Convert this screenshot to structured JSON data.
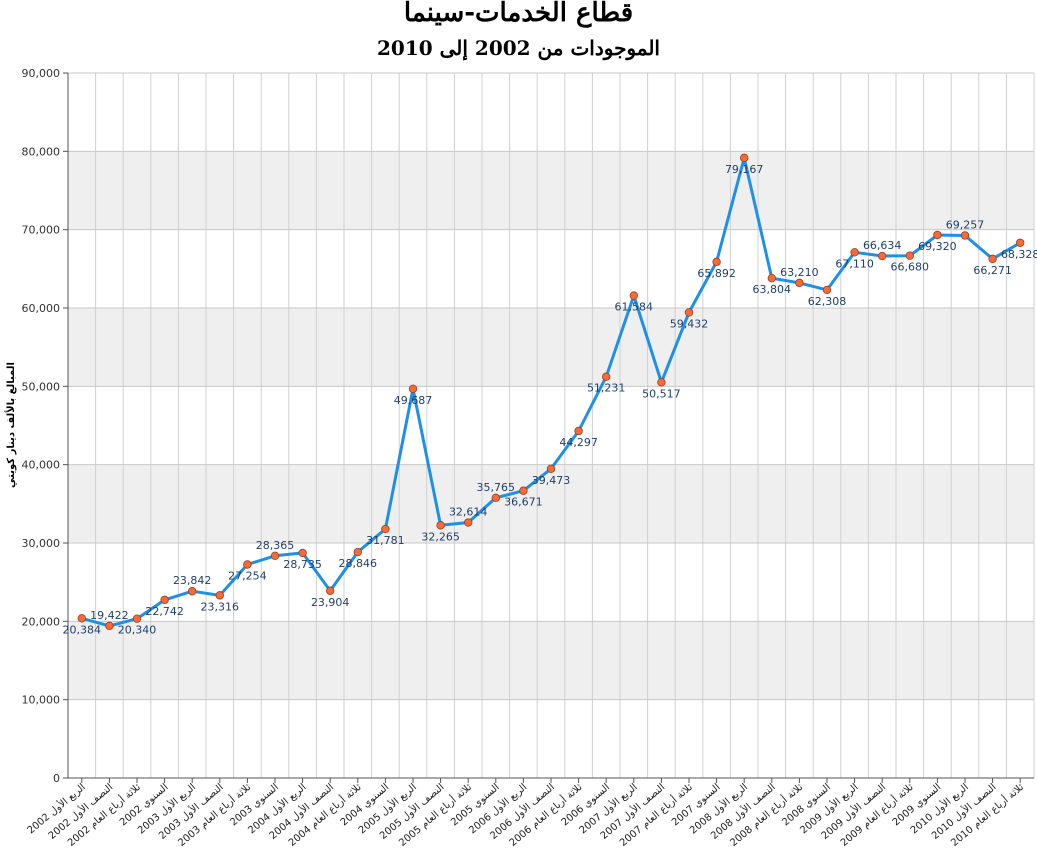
{
  "chart_data": {
    "type": "line",
    "title": "قطاع الخدمات-سينما",
    "subtitle": "الموجودات من 2002 إلى 2010",
    "ylabel": "المبالغ بالألف دينار كويتي",
    "xlabel": "",
    "ylim": [
      0,
      90000
    ],
    "yticks": [
      "0",
      "10,000",
      "20,000",
      "30,000",
      "40,000",
      "50,000",
      "60,000",
      "70,000",
      "80,000",
      "90,000"
    ],
    "grid": true,
    "line_color": "#1e90e8",
    "marker_color": "#f26b3a",
    "categories": [
      "الربع الأول 2002",
      "النصف الأول 2002",
      "ثلاثة أرباع العام 2002",
      "السنوي 2002",
      "الربع الأول 2003",
      "النصف الأول 2003",
      "ثلاثة أرباع العام 2003",
      "السنوي 2003",
      "الربع الأول 2004",
      "النصف الأول 2004",
      "ثلاثة أرباع العام 2004",
      "السنوي 2004",
      "الربع الأول 2005",
      "النصف الأول 2005",
      "ثلاثة أرباع العام 2005",
      "السنوي 2005",
      "الربع الأول 2006",
      "النصف الأول 2006",
      "ثلاثة أرباع العام 2006",
      "السنوي 2006",
      "الربع الأول 2007",
      "النصف الأول 2007",
      "ثلاثة أرباع العام 2007",
      "السنوي 2007",
      "الربع الأول 2008",
      "النصف الأول 2008",
      "ثلاثة أرباع العام 2008",
      "السنوي 2008",
      "الربع الأول 2009",
      "النصف الأول 2009",
      "ثلاثة أرباع العام 2009",
      "السنوي 2009",
      "الربع الأول 2010",
      "النصف الأول 2010",
      "ثلاثة أرباع العام 2010"
    ],
    "values": [
      20384,
      19422,
      20340,
      22742,
      23842,
      23316,
      27254,
      28365,
      28735,
      23904,
      28846,
      31781,
      49687,
      32265,
      32614,
      35765,
      36671,
      39473,
      44297,
      51231,
      61584,
      50517,
      59432,
      65892,
      79167,
      63804,
      63210,
      62308,
      67110,
      66634,
      66680,
      69320,
      69257,
      66271,
      68328
    ],
    "value_labels": [
      "20,384",
      "19,422",
      "20,340",
      "22,742",
      "23,842",
      "23,316",
      "27,254",
      "28,365",
      "28,735",
      "23,904",
      "28,846",
      "31,781",
      "49,687",
      "32,265",
      "32,614",
      "35,765",
      "36,671",
      "39,473",
      "44,297",
      "51,231",
      "61,584",
      "50,517",
      "59,432",
      "65,892",
      "79,167",
      "63,804",
      "63,210",
      "62,308",
      "67,110",
      "66,634",
      "66,680",
      "69,320",
      "69,257",
      "66,271",
      "68,328"
    ],
    "label_pos": [
      "below",
      "above",
      "below",
      "below",
      "above",
      "below",
      "below",
      "above",
      "below",
      "below",
      "below",
      "below",
      "below",
      "below",
      "above",
      "above",
      "below",
      "below",
      "below",
      "below",
      "below",
      "below",
      "below",
      "below",
      "below",
      "below",
      "above",
      "below",
      "below",
      "above",
      "below",
      "below",
      "above",
      "below",
      "below"
    ]
  }
}
